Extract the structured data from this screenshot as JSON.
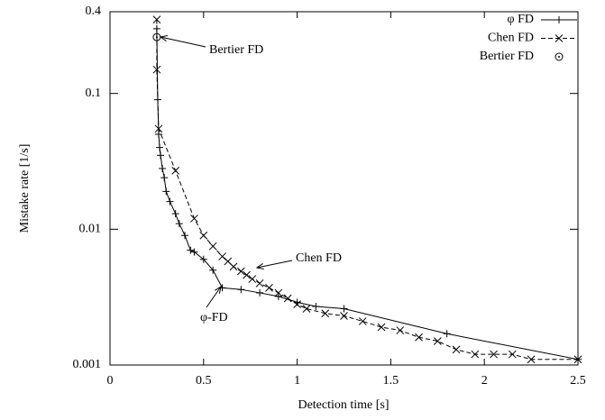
{
  "chart_data": {
    "type": "line",
    "x_label": "Detection time [s]",
    "y_label": "Mistake rate [1/s]",
    "ylog": true,
    "xlim": [
      0,
      2.5
    ],
    "ylim": [
      0.001,
      0.4
    ],
    "xticks": [
      0,
      0.5,
      1,
      1.5,
      2,
      2.5
    ],
    "yticks": [
      0.001,
      0.01,
      0.1,
      0.4
    ],
    "legend": "top-right",
    "annotations": [
      "Bertier FD",
      "Chen FD",
      "φ-FD"
    ],
    "series": [
      {
        "name": "φ FD",
        "color": "#000000",
        "dash": "solid",
        "marker": "plus",
        "x": [
          0.25,
          0.255,
          0.26,
          0.265,
          0.27,
          0.28,
          0.29,
          0.3,
          0.32,
          0.35,
          0.37,
          0.4,
          0.43,
          0.45,
          0.5,
          0.55,
          0.6,
          0.7,
          0.8,
          0.9,
          1.0,
          1.1,
          1.25,
          1.8,
          2.5
        ],
        "values": [
          0.3,
          0.09,
          0.05,
          0.04,
          0.035,
          0.028,
          0.024,
          0.019,
          0.016,
          0.013,
          0.011,
          0.009,
          0.007,
          0.0068,
          0.006,
          0.005,
          0.0037,
          0.0036,
          0.0034,
          0.0032,
          0.0029,
          0.0027,
          0.0026,
          0.0017,
          0.0011
        ]
      },
      {
        "name": "Chen FD",
        "color": "#000000",
        "dash": "dashed",
        "marker": "cross",
        "x": [
          0.25,
          0.25,
          0.26,
          0.35,
          0.45,
          0.5,
          0.55,
          0.6,
          0.63,
          0.66,
          0.7,
          0.73,
          0.76,
          0.8,
          0.85,
          0.9,
          0.95,
          1.0,
          1.05,
          1.15,
          1.25,
          1.35,
          1.45,
          1.55,
          1.65,
          1.75,
          1.85,
          1.95,
          2.05,
          2.15,
          2.25,
          2.5
        ],
        "values": [
          0.35,
          0.15,
          0.055,
          0.027,
          0.012,
          0.009,
          0.0075,
          0.0063,
          0.0058,
          0.0053,
          0.0049,
          0.0046,
          0.0043,
          0.004,
          0.0037,
          0.0034,
          0.0031,
          0.0028,
          0.0026,
          0.0024,
          0.0023,
          0.0021,
          0.0019,
          0.0018,
          0.0016,
          0.0015,
          0.0013,
          0.0012,
          0.0012,
          0.0012,
          0.0011,
          0.0011
        ]
      },
      {
        "name": "Bertier FD",
        "color": "#000000",
        "dash": "none",
        "marker": "circle-dot",
        "x": [
          0.25
        ],
        "values": [
          0.26
        ]
      }
    ]
  }
}
